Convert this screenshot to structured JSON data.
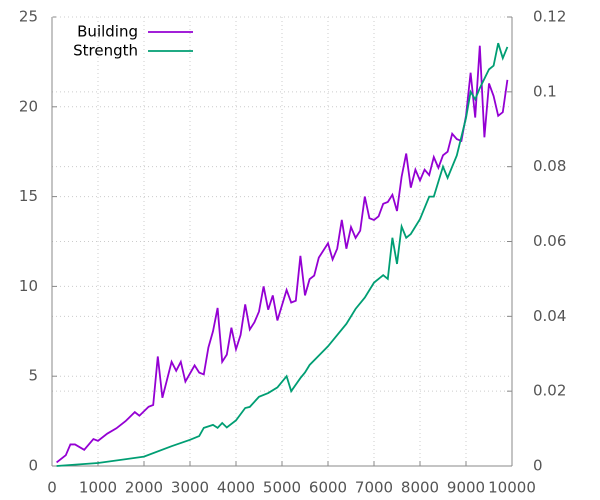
{
  "chart_data": {
    "type": "line",
    "xlim": [
      0,
      10000
    ],
    "xticks": [
      0,
      1000,
      2000,
      3000,
      4000,
      5000,
      6000,
      7000,
      8000,
      9000,
      10000
    ],
    "ylim": [
      0,
      25
    ],
    "yticks": [
      0,
      5,
      10,
      15,
      20,
      25
    ],
    "y2lim": [
      0,
      0.12
    ],
    "y2ticks": [
      0,
      0.02,
      0.04,
      0.06,
      0.08,
      0.1,
      0.12
    ],
    "grid": true,
    "legend": "top-left",
    "series": [
      {
        "name": "Building",
        "color": "#9400d3",
        "x": [
          100,
          300,
          400,
          500,
          700,
          900,
          1000,
          1200,
          1400,
          1600,
          1800,
          1900,
          2100,
          2200,
          2300,
          2400,
          2600,
          2700,
          2800,
          2900,
          3100,
          3200,
          3300,
          3400,
          3500,
          3600,
          3700,
          3800,
          3900,
          4000,
          4100,
          4200,
          4300,
          4400,
          4500,
          4600,
          4700,
          4800,
          4900,
          5100,
          5200,
          5300,
          5400,
          5500,
          5600,
          5700,
          5800,
          6000,
          6100,
          6200,
          6300,
          6400,
          6500,
          6600,
          6700,
          6800,
          6900,
          7000,
          7100,
          7200,
          7300,
          7400,
          7500,
          7600,
          7700,
          7800,
          7900,
          8000,
          8100,
          8200,
          8300,
          8400,
          8500,
          8600,
          8700,
          8800,
          8900,
          9000,
          9100,
          9200,
          9300,
          9400,
          9500,
          9600,
          9700,
          9800,
          9900
        ],
        "values": [
          0.2,
          0.6,
          1.2,
          1.2,
          0.9,
          1.5,
          1.4,
          1.8,
          2.1,
          2.5,
          3.0,
          2.8,
          3.3,
          3.4,
          6.1,
          3.8,
          5.8,
          5.3,
          5.8,
          4.7,
          5.6,
          5.2,
          5.1,
          6.6,
          7.5,
          8.8,
          5.8,
          6.2,
          7.7,
          6.5,
          7.3,
          9.0,
          7.6,
          8.0,
          8.6,
          10.0,
          8.7,
          9.5,
          8.1,
          9.8,
          9.1,
          9.2,
          11.7,
          9.5,
          10.4,
          10.6,
          11.6,
          12.4,
          11.5,
          12.1,
          13.7,
          12.1,
          13.3,
          12.7,
          13.1,
          15.0,
          13.8,
          13.7,
          13.9,
          14.6,
          14.7,
          15.1,
          14.2,
          16.1,
          17.4,
          15.5,
          16.5,
          15.9,
          16.5,
          16.2,
          17.2,
          16.6,
          17.3,
          17.5,
          18.5,
          18.2,
          18.1,
          19.5,
          21.9,
          19.4,
          23.4,
          18.3,
          21.3,
          20.6,
          19.5,
          19.7,
          21.5
        ]
      },
      {
        "name": "Strength",
        "color": "#009e73",
        "axis": "y2",
        "x": [
          100,
          1000,
          2000,
          2600,
          3000,
          3200,
          3300,
          3500,
          3600,
          3700,
          3800,
          4000,
          4200,
          4300,
          4500,
          4700,
          4900,
          5100,
          5200,
          5400,
          5500,
          5600,
          5800,
          6000,
          6200,
          6400,
          6600,
          6800,
          7000,
          7200,
          7300,
          7400,
          7500,
          7600,
          7700,
          7800,
          8000,
          8200,
          8300,
          8400,
          8500,
          8600,
          8800,
          9000,
          9100,
          9200,
          9300,
          9500,
          9600,
          9700,
          9800,
          9900
        ],
        "values": [
          0,
          0.0008,
          0.0025,
          0.0053,
          0.007,
          0.008,
          0.0102,
          0.011,
          0.0102,
          0.0115,
          0.0103,
          0.0122,
          0.0155,
          0.0158,
          0.0185,
          0.0195,
          0.021,
          0.024,
          0.02,
          0.0235,
          0.025,
          0.027,
          0.0295,
          0.032,
          0.035,
          0.038,
          0.042,
          0.045,
          0.049,
          0.051,
          0.05,
          0.061,
          0.054,
          0.064,
          0.061,
          0.062,
          0.066,
          0.072,
          0.072,
          0.076,
          0.08,
          0.077,
          0.083,
          0.093,
          0.1,
          0.098,
          0.101,
          0.106,
          0.107,
          0.113,
          0.109,
          0.112
        ]
      }
    ]
  }
}
